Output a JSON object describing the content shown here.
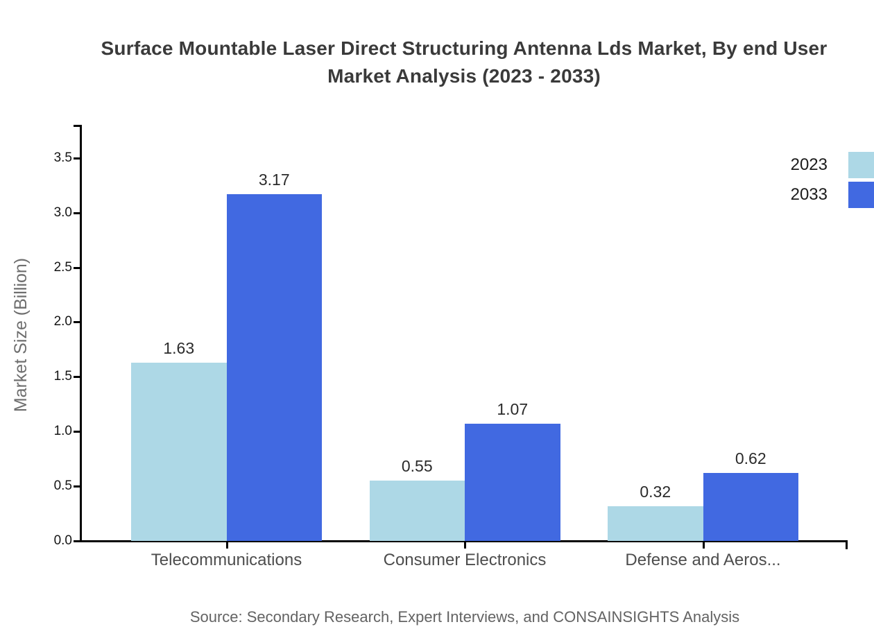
{
  "title": {
    "line1": "Surface Mountable Laser Direct Structuring Antenna Lds Market, By end User",
    "line2": "Market Analysis (2023 - 2033)"
  },
  "source": "Source: Secondary Research, Expert Interviews, and CONSAINSIGHTS Analysis",
  "chart_data": {
    "type": "bar",
    "title": "Surface Mountable Laser Direct Structuring Antenna Lds Market, By end User Market Analysis (2023 - 2033)",
    "ylabel": "Market Size (Billion)",
    "xlabel": "",
    "categories": [
      "Telecommunications",
      "Consumer Electronics",
      "Defense and Aeros..."
    ],
    "series": [
      {
        "name": "2023",
        "color": "#ADD8E6",
        "values": [
          1.63,
          0.55,
          0.32
        ]
      },
      {
        "name": "2033",
        "color": "#4169E1",
        "values": [
          3.17,
          1.07,
          0.62
        ]
      }
    ],
    "yticks": [
      0.0,
      0.5,
      1.0,
      1.5,
      2.0,
      2.5,
      3.0,
      3.5
    ],
    "ytick_labels": [
      "0.0",
      "0.5",
      "1.0",
      "1.5",
      "2.0",
      "2.5",
      "3.0",
      "3.5"
    ],
    "ylim": [
      0,
      3.8
    ],
    "grid": false,
    "legend_position": "top-right",
    "bar_value_decimals": 2
  },
  "colors": {
    "axis": "#000000",
    "series_2023": "#ADD8E6",
    "series_2033": "#4169E1"
  }
}
